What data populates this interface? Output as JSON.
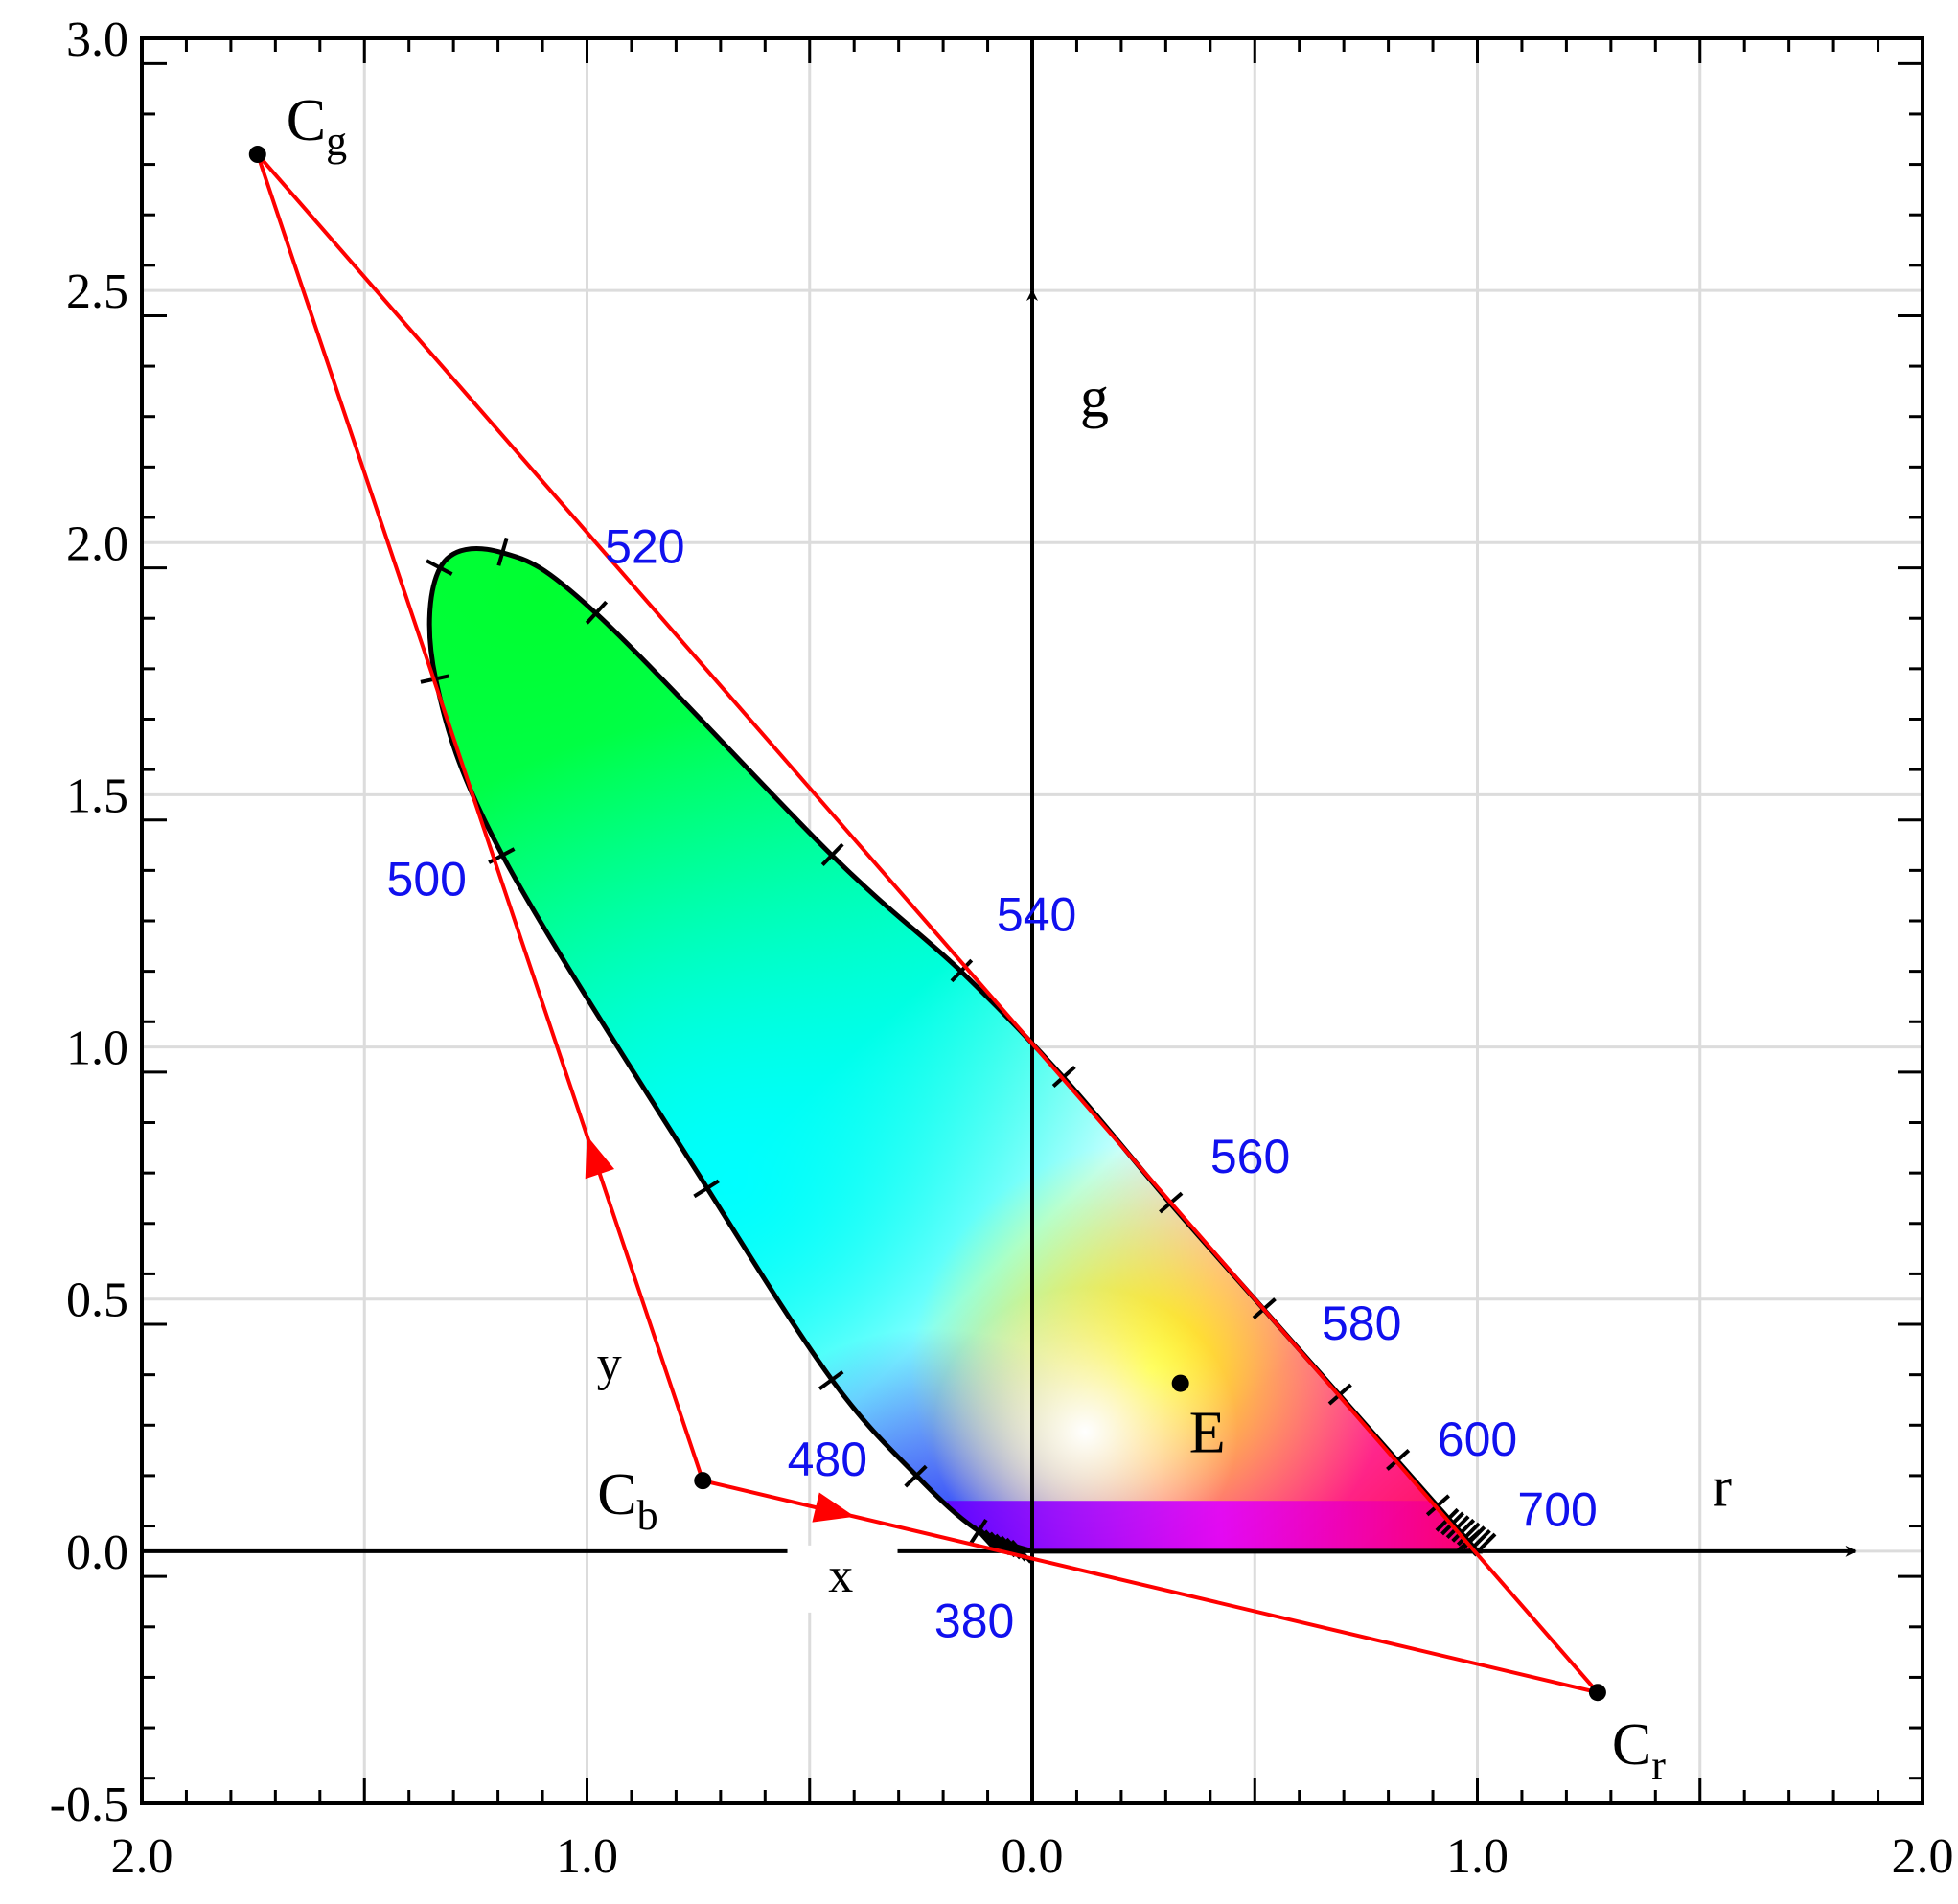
{
  "chart_data": {
    "type": "scatter",
    "title": "",
    "xlim": [
      -2.0,
      2.0
    ],
    "ylim": [
      -0.5,
      3.0
    ],
    "x_tick_labels": [
      "2.0",
      "1.0",
      "0.0",
      "1.0",
      "2.0"
    ],
    "y_tick_labels": [
      "-0.5",
      "0.0",
      "0.5",
      "1.0",
      "1.5",
      "2.0",
      "2.5",
      "3.0"
    ],
    "grid": true,
    "axis_names": {
      "r": "r",
      "g": "g",
      "x": "x",
      "y": "y"
    },
    "colors": {
      "triangle": "#ff0000",
      "wavelength_labels": "#1010ee",
      "axes": "#000000"
    },
    "primaries": [
      {
        "name": "C",
        "sub": "g",
        "r": -1.74,
        "g": 2.77
      },
      {
        "name": "C",
        "sub": "b",
        "r": -0.74,
        "g": 0.14
      },
      {
        "name": "C",
        "sub": "r",
        "r": 1.27,
        "g": -0.28
      }
    ],
    "white_point": {
      "name": "E",
      "r": 0.333,
      "g": 0.333
    },
    "spectral_locus": [
      {
        "nm": 380,
        "r": 0.0,
        "g": 0.0,
        "label": "380"
      },
      {
        "nm": 460,
        "r": -0.12,
        "g": 0.04
      },
      {
        "nm": 470,
        "r": -0.26,
        "g": 0.15
      },
      {
        "nm": 480,
        "r": -0.45,
        "g": 0.34,
        "label": "480"
      },
      {
        "nm": 490,
        "r": -0.73,
        "g": 0.72
      },
      {
        "nm": 500,
        "r": -1.19,
        "g": 1.38,
        "label": "500"
      },
      {
        "nm": 505,
        "r": -1.34,
        "g": 1.73
      },
      {
        "nm": 510,
        "r": -1.33,
        "g": 1.95
      },
      {
        "nm": 515,
        "r": -1.19,
        "g": 1.98
      },
      {
        "nm": 520,
        "r": -0.98,
        "g": 1.86,
        "label": "520"
      },
      {
        "nm": 530,
        "r": -0.45,
        "g": 1.38
      },
      {
        "nm": 540,
        "r": -0.16,
        "g": 1.15,
        "label": "540"
      },
      {
        "nm": 550,
        "r": 0.07,
        "g": 0.94
      },
      {
        "nm": 560,
        "r": 0.31,
        "g": 0.69,
        "label": "560"
      },
      {
        "nm": 570,
        "r": 0.52,
        "g": 0.48
      },
      {
        "nm": 580,
        "r": 0.69,
        "g": 0.31,
        "label": "580"
      },
      {
        "nm": 590,
        "r": 0.82,
        "g": 0.18
      },
      {
        "nm": 600,
        "r": 0.91,
        "g": 0.09,
        "label": "600"
      },
      {
        "nm": 620,
        "r": 0.98,
        "g": 0.02
      },
      {
        "nm": 700,
        "r": 1.0,
        "g": 0.0,
        "label": "700"
      }
    ]
  }
}
